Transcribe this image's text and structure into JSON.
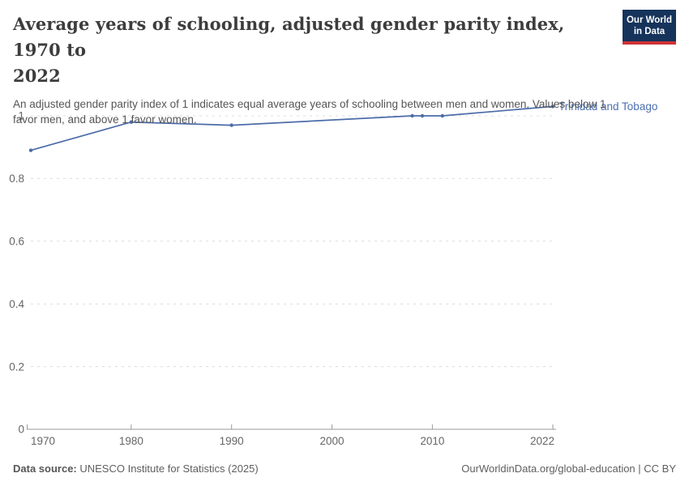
{
  "header": {
    "title": "Average years of schooling, adjusted gender parity index, 1970 to 2022",
    "title_lines": [
      "Average years of schooling, adjusted gender parity index, 1970 to",
      "2022"
    ],
    "subtitle": "An adjusted gender parity index of 1 indicates equal average years of schooling between men and women. Values below 1 favor men, and above 1 favor women.",
    "subtitle_lines": [
      "An adjusted gender parity index of 1 indicates equal average years of schooling between men and women. Values below 1",
      "favor men, and above 1 favor women."
    ]
  },
  "logo": {
    "line1": "Our World",
    "line2": "in Data",
    "bg_color": "#15335b",
    "accent_color": "#cf3235"
  },
  "chart_data": {
    "type": "line",
    "title": "Average years of schooling, adjusted gender parity index, 1970 to 2022",
    "xlabel": "",
    "ylabel": "",
    "xlim": [
      1970,
      2022
    ],
    "ylim": [
      0,
      1.05
    ],
    "x_ticks": [
      1970,
      1980,
      1990,
      2000,
      2010,
      2022
    ],
    "y_ticks": [
      0,
      0.2,
      0.4,
      0.6,
      0.8,
      1
    ],
    "grid": "horizontal-dashed",
    "legend_position": "end-of-line-label",
    "series": [
      {
        "name": "Trinidad and Tobago",
        "color": "#4b6ca8",
        "points": [
          {
            "x": 1970,
            "y": 0.89
          },
          {
            "x": 1980,
            "y": 0.98
          },
          {
            "x": 1990,
            "y": 0.97
          },
          {
            "x": 2008,
            "y": 1.0
          },
          {
            "x": 2009,
            "y": 1.0
          },
          {
            "x": 2011,
            "y": 1.0
          },
          {
            "x": 2022,
            "y": 1.03
          }
        ]
      }
    ],
    "colors": {
      "line": "#4b6ca8",
      "entity_label": "#4c6fae",
      "grid": "#dcdcdc",
      "axis": "#999999",
      "tick_label": "#666666"
    }
  },
  "footer": {
    "source_label": "Data source:",
    "source_text": " UNESCO Institute for Statistics (2025)",
    "link_text": "OurWorldinData.org/global-education | CC BY"
  }
}
